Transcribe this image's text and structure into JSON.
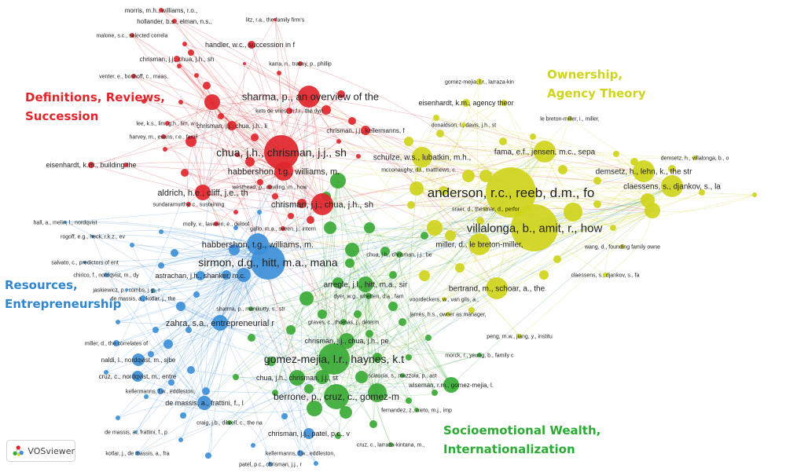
{
  "colors": {
    "red": "#e0262c",
    "yellow": "#cfd41c",
    "green": "#3aaa35",
    "blue": "#3d8fd8"
  },
  "clusters": [
    {
      "id": "red",
      "lines": [
        "Definitions, Reviews,",
        "Succession"
      ],
      "color": "#e0262c"
    },
    {
      "id": "yellow",
      "lines": [
        "Ownership,",
        "Agency Theory"
      ],
      "color": "#cfd41c"
    },
    {
      "id": "blue",
      "lines": [
        "Resources,",
        "Entrepreneurship"
      ],
      "color": "#2f86cf"
    },
    {
      "id": "green",
      "lines": [
        "Socioemotional Wealth,",
        "Internationalization"
      ],
      "color": "#2bab34"
    }
  ],
  "logo": {
    "text": "VOSviewer",
    "icon": "vosviewer-logo-icon"
  },
  "network": {
    "nodes": [
      {
        "label": "morris, m.h., williams, r.o.,",
        "c": "red"
      },
      {
        "label": "hollander, b.s., elman, n.s.,",
        "c": "red"
      },
      {
        "label": "litz, r.a., the family firm's",
        "c": "red"
      },
      {
        "label": "malone, s.c., selected correla",
        "c": "red"
      },
      {
        "label": "handler, w.c., succession in f",
        "c": "red"
      },
      {
        "label": "chrisman, j.j., chua, j.h., sh",
        "c": "red"
      },
      {
        "label": "karra, n., tracey, p., phillip",
        "c": "red"
      },
      {
        "label": "venter, e., boshoff, c., maas,",
        "c": "red"
      },
      {
        "label": "sharma, p., an overview of the",
        "c": "red"
      },
      {
        "label": "kets de vries, m.f.r., the dyn",
        "c": "red"
      },
      {
        "label": "lee, k.s., lim, g.h., lim, w.s",
        "c": "red"
      },
      {
        "label": "chrisman, j.j., chua, j.h., li",
        "c": "red"
      },
      {
        "label": "chrisman, j.j., kellermanns, f",
        "c": "red"
      },
      {
        "label": "harvey, m., evans, r.e., famil",
        "c": "red"
      },
      {
        "label": "chua, j.h., chrisman, j.j., sh",
        "c": "red"
      },
      {
        "label": "eisenhardt, k.m., building the",
        "c": "red"
      },
      {
        "label": "habbershon, t.g., williams, m.",
        "c": "red"
      },
      {
        "label": "westhead, p., cowling, m., how",
        "c": "red"
      },
      {
        "label": "aldrich, h.e., cliff, j.e., th",
        "c": "red"
      },
      {
        "label": "chrisman, j.j., chua, j.h., sh",
        "c": "red"
      },
      {
        "label": "sundaramurthy, c., sustaining",
        "c": "red"
      },
      {
        "label": "molly, v., laveren, e., deloof",
        "c": "red"
      },
      {
        "label": "gallo, m.a., sveen, j., intern",
        "c": "red"
      },
      {
        "label": "gomez-mejia, l.r., larraza-kin",
        "c": "yellow"
      },
      {
        "label": "eisenhardt, k.m., agency theor",
        "c": "yellow"
      },
      {
        "label": "donaldson, l., davis, j.h., st",
        "c": "yellow"
      },
      {
        "label": "le breton-miller, i., miller,",
        "c": "yellow"
      },
      {
        "label": "schulze, w.s., lubatkin, m.h.,",
        "c": "yellow"
      },
      {
        "label": "fama, e.f., jensen, m.c., sepa",
        "c": "yellow"
      },
      {
        "label": "demsetz, h., villalonga, b., o",
        "c": "yellow"
      },
      {
        "label": "mcconaughy, d.l., matthews, c.",
        "c": "yellow"
      },
      {
        "label": "demsetz, h., lehn, k., the str",
        "c": "yellow"
      },
      {
        "label": "claessens, s., djankov, s., la",
        "c": "yellow"
      },
      {
        "label": "anderson, r.c., reeb, d.m., fo",
        "c": "yellow"
      },
      {
        "label": "sraer, d., thesmar, d., perfor",
        "c": "yellow"
      },
      {
        "label": "villalonga, b., amit, r., how",
        "c": "yellow"
      },
      {
        "label": "miller, d., le breton-miller,",
        "c": "yellow"
      },
      {
        "label": "wang, d., founding family owne",
        "c": "yellow"
      },
      {
        "label": "claessens, s., djankov, s., fa",
        "c": "yellow"
      },
      {
        "label": "bertrand, m., schoar, a., the",
        "c": "yellow"
      },
      {
        "label": "voordeckers, w., van gils, a.,",
        "c": "yellow"
      },
      {
        "label": "peng, m.w., jiang, y., institu",
        "c": "yellow"
      },
      {
        "label": "james, h.s., owner as manager,",
        "c": "yellow"
      },
      {
        "label": "hall, a., melin, l., nordqvist",
        "c": "blue"
      },
      {
        "label": "rogoff, e.g., heck, r.k.z., ev",
        "c": "blue"
      },
      {
        "label": "habbershon, t.g., williams, m.",
        "c": "blue"
      },
      {
        "label": "salvato, c., predictors of ent",
        "c": "blue"
      },
      {
        "label": "sirmon, d.g., hitt, m.a., mana",
        "c": "blue"
      },
      {
        "label": "chirico, f., nordqvist, m., dy",
        "c": "blue"
      },
      {
        "label": "astrachan, j.h., shanker, m.c.",
        "c": "blue"
      },
      {
        "label": "jaskiewicz, p., combs, j.g., r",
        "c": "blue"
      },
      {
        "label": "de massis, a., kotlar, j., the",
        "c": "blue"
      },
      {
        "label": "zahra, s.a., entrepreneurial r",
        "c": "blue"
      },
      {
        "label": "miller, d., the correlates of",
        "c": "blue"
      },
      {
        "label": "naldi, l., nordqvist, m., sjbe",
        "c": "blue"
      },
      {
        "label": "cruz, c., nordqvist, m., entre",
        "c": "blue"
      },
      {
        "label": "kellermanns, f.w., eddleston,",
        "c": "blue"
      },
      {
        "label": "de massis, a., frattini, f., l",
        "c": "blue"
      },
      {
        "label": "de massis, a., frattini, f., p",
        "c": "blue"
      },
      {
        "label": "chrisman, j.j., patel, p.c., v",
        "c": "blue"
      },
      {
        "label": "kotlar, j., de massis, a., fra",
        "c": "blue"
      },
      {
        "label": "kellermanns, f.w., eddleston,",
        "c": "blue"
      },
      {
        "label": "patel, p.c., chrisman, j.j., r",
        "c": "blue"
      },
      {
        "label": "chua, j.h., chrisman, j.j., be",
        "c": "green"
      },
      {
        "label": "arregle, j.l., hitt, m.a., sir",
        "c": "green"
      },
      {
        "label": "dyer, w.g., whetten, d.a., fam",
        "c": "green"
      },
      {
        "label": "sharma, p., manikutty, s., str",
        "c": "green"
      },
      {
        "label": "graves, c., thomas, j., determ",
        "c": "green"
      },
      {
        "label": "chrisman, j.j., chua, j.h., pe",
        "c": "green"
      },
      {
        "label": "gomez-mejia, l.r., haynes, k.t",
        "c": "green"
      },
      {
        "label": "morck, r., yeung, b., family c",
        "c": "green"
      },
      {
        "label": "chua, j.h., chrisman, j.j., st",
        "c": "green"
      },
      {
        "label": "sciascia, s., mazzola, p., ast",
        "c": "green"
      },
      {
        "label": "wiseman, r.m., gomez-mejia, l.",
        "c": "green"
      },
      {
        "label": "berrone, p., cruz, c., gomez-m",
        "c": "green"
      },
      {
        "label": "fernandez, z., nieto, m.j., imp",
        "c": "green"
      },
      {
        "label": "craig, j.b., dibrell, c., the na",
        "c": "green"
      },
      {
        "label": "cruz, c., larraza-kintana, m.,",
        "c": "green"
      }
    ]
  }
}
